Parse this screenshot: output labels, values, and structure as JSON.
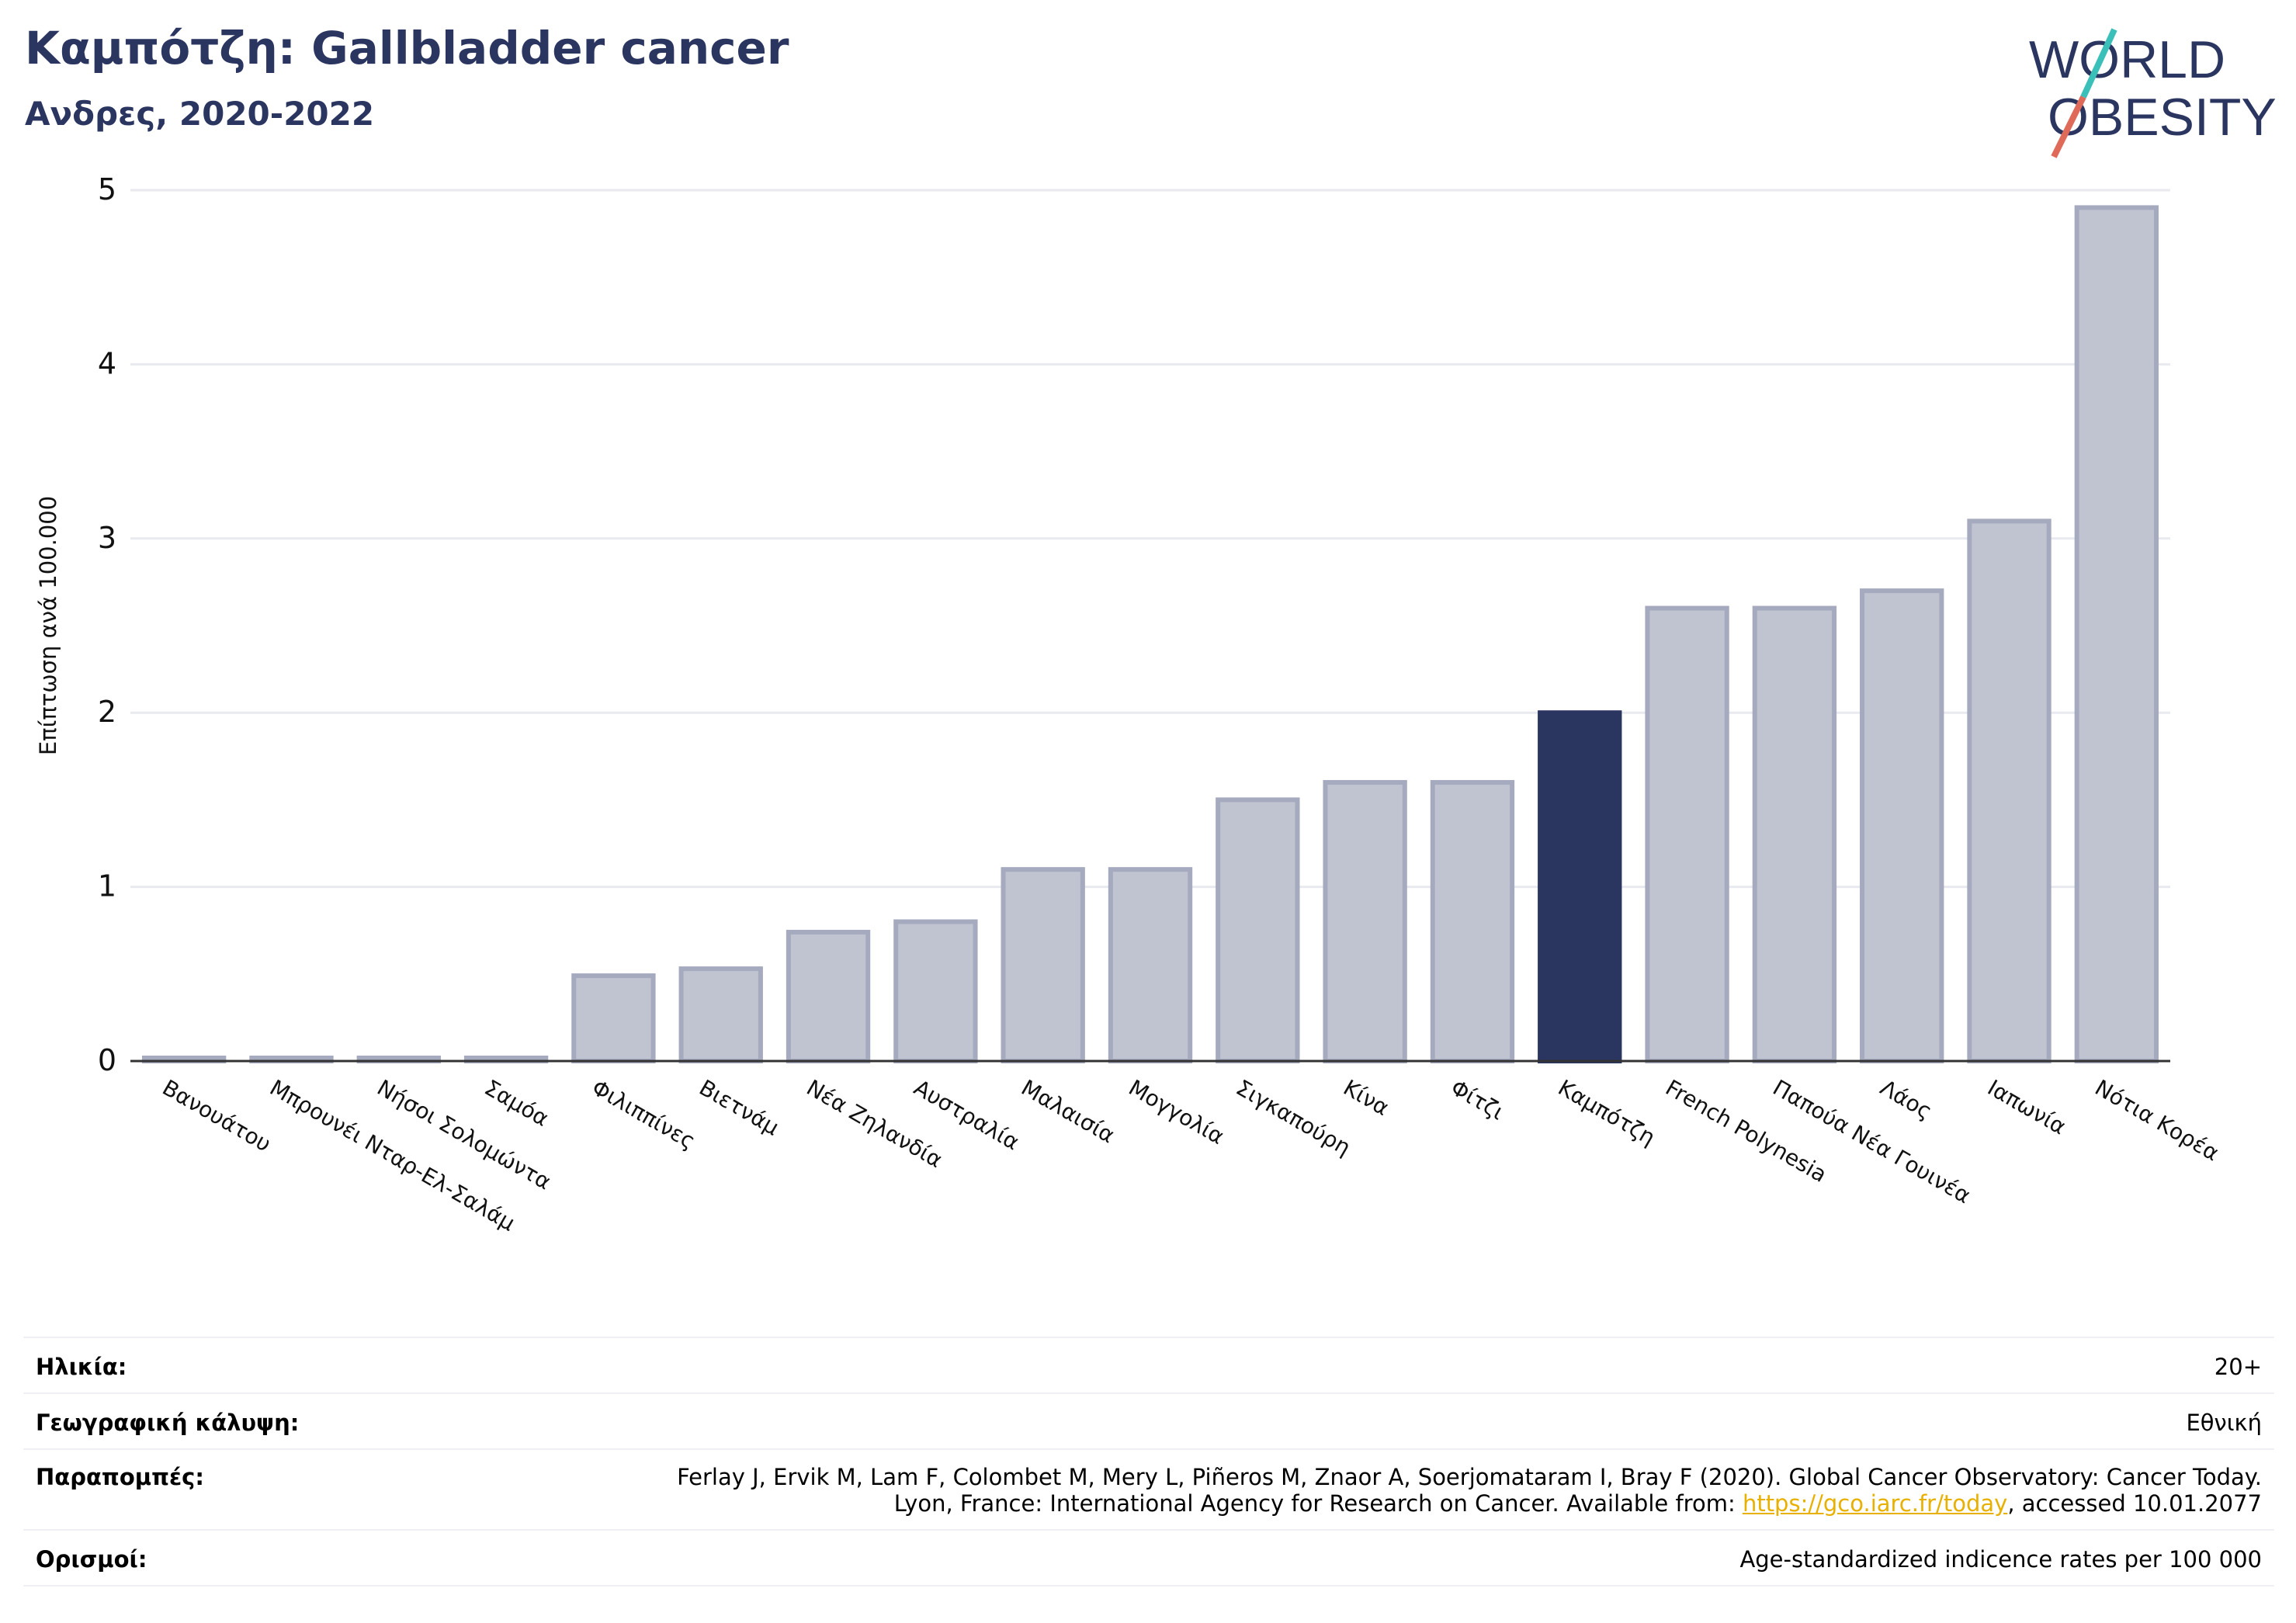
{
  "header": {
    "title": "Καμπότζη: Gallbladder cancer",
    "subtitle": "Ανδρες, 2020-2022"
  },
  "logo": {
    "line1": "WORLD",
    "line2": "OBESITY",
    "color": "#2a3560",
    "accent_teal": "#3bbfb9",
    "accent_red": "#e06a5a"
  },
  "chart_data": {
    "type": "bar",
    "ylabel": "Επίπτωση ανά 100.000",
    "xlabel": "",
    "ylim": [
      0,
      5
    ],
    "yticks": [
      "0",
      "1",
      "2",
      "3",
      "4",
      "5"
    ],
    "grid": true,
    "categories": [
      "Βανουάτου",
      "Μπρουνέι Νταρ-Ελ-Σαλάμ",
      "Νήσοι Σολομώντα",
      "Σαμόα",
      "Φιλιππίνες",
      "Βιετνάμ",
      "Νέα Ζηλανδία",
      "Αυστραλία",
      "Μαλαισία",
      "Μογγολία",
      "Σιγκαπούρη",
      "Κίνα",
      "Φίτζι",
      "Καμπότζη",
      "French Polynesia",
      "Παπούα Νέα Γουινέα",
      "Λάος",
      "Ιαπωνία",
      "Νότια Κορέα"
    ],
    "values": [
      0.0,
      0.0,
      0.0,
      0.0,
      0.49,
      0.53,
      0.74,
      0.8,
      1.1,
      1.1,
      1.5,
      1.6,
      1.6,
      2.0,
      2.6,
      2.6,
      2.7,
      3.1,
      4.9
    ],
    "highlight": "Καμπότζη",
    "colors": {
      "bar_fill": "#c0c3d0",
      "bar_stroke": "#a6aabf",
      "highlight": "#2a3560",
      "grid": "#e8eaef",
      "axis": "#333333"
    }
  },
  "footer": {
    "rows": [
      {
        "key": "Ηλικία:",
        "value": "20+"
      },
      {
        "key": "Γεωγραφική κάλυψη:",
        "value": "Εθνική"
      },
      {
        "key": "Παραπομπές:",
        "value_line1": "Ferlay J, Ervik M, Lam F, Colombet M, Mery L, Piñeros M, Znaor A, Soerjomataram I, Bray F (2020). Global Cancer Observatory: Cancer Today.",
        "value_line2_pre": "Lyon, France: International Agency for Research on Cancer. Available from: ",
        "link": "https://gco.iarc.fr/today",
        "value_line2_post": ", accessed 10.01.2077"
      },
      {
        "key": "Ορισμοί:",
        "value": "Age-standardized indicence rates per 100 000"
      }
    ]
  }
}
